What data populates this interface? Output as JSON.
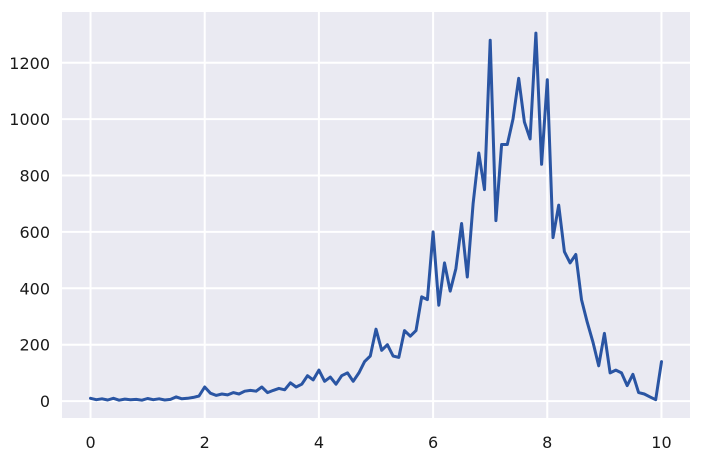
{
  "chart_data": {
    "type": "line",
    "title": "",
    "xlabel": "",
    "ylabel": "",
    "xlim": [
      -0.5,
      10.5
    ],
    "ylim": [
      -60,
      1380
    ],
    "grid": true,
    "xticks": [
      0,
      2,
      4,
      6,
      8,
      10
    ],
    "yticks": [
      0,
      200,
      400,
      600,
      800,
      1000,
      1200
    ],
    "xtick_labels": [
      "0",
      "2",
      "4",
      "6",
      "8",
      "10"
    ],
    "ytick_labels": [
      "0",
      "200",
      "400",
      "600",
      "800",
      "1000",
      "1200"
    ],
    "colors": {
      "line": "#2a55a3",
      "background": "#eaeaf2",
      "grid": "#ffffff"
    },
    "series": [
      {
        "x": [
          0,
          0.1,
          0.2,
          0.3,
          0.4,
          0.5,
          0.6,
          0.7,
          0.8,
          0.9,
          1.0,
          1.1,
          1.2,
          1.3,
          1.4,
          1.5,
          1.6,
          1.7,
          1.8,
          1.9,
          2.0,
          2.1,
          2.2,
          2.3,
          2.4,
          2.5,
          2.6,
          2.7,
          2.8,
          2.9,
          3.0,
          3.1,
          3.2,
          3.3,
          3.4,
          3.5,
          3.6,
          3.7,
          3.8,
          3.9,
          4.0,
          4.1,
          4.2,
          4.3,
          4.4,
          4.5,
          4.6,
          4.7,
          4.8,
          4.9,
          5.0,
          5.1,
          5.2,
          5.3,
          5.4,
          5.5,
          5.6,
          5.7,
          5.8,
          5.9,
          6.0,
          6.1,
          6.2,
          6.3,
          6.4,
          6.5,
          6.6,
          6.7,
          6.8,
          6.9,
          7.0,
          7.1,
          7.2,
          7.3,
          7.4,
          7.5,
          7.6,
          7.7,
          7.8,
          7.9,
          8.0,
          8.1,
          8.2,
          8.3,
          8.4,
          8.5,
          8.6,
          8.7,
          8.8,
          8.9,
          9.0,
          9.1,
          9.2,
          9.3,
          9.4,
          9.5,
          9.6,
          9.7,
          9.8,
          9.9,
          10.0
        ],
        "y": [
          10,
          5,
          8,
          4,
          10,
          3,
          7,
          5,
          6,
          3,
          9,
          5,
          8,
          4,
          6,
          15,
          8,
          10,
          13,
          18,
          50,
          28,
          20,
          25,
          22,
          30,
          25,
          35,
          38,
          35,
          50,
          30,
          38,
          45,
          40,
          65,
          50,
          60,
          90,
          75,
          110,
          70,
          85,
          60,
          90,
          100,
          70,
          100,
          140,
          160,
          255,
          180,
          200,
          160,
          155,
          250,
          230,
          250,
          370,
          360,
          600,
          340,
          490,
          390,
          470,
          630,
          440,
          700,
          880,
          750,
          1280,
          640,
          910,
          910,
          1000,
          1145,
          990,
          930,
          1305,
          840,
          1140,
          580,
          695,
          530,
          490,
          520,
          360,
          280,
          210,
          125,
          240,
          100,
          110,
          100,
          55,
          95,
          30,
          25,
          15,
          5,
          140
        ]
      }
    ]
  }
}
